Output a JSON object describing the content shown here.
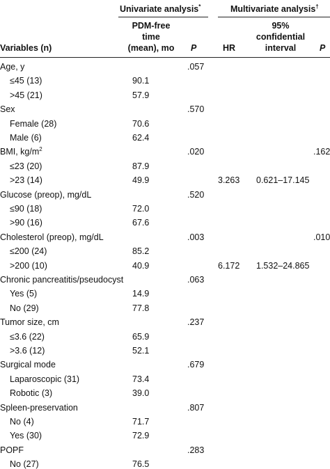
{
  "header": {
    "univariate": "Univariate analysis",
    "univariate_mark": "*",
    "multivariate": "Multivariate analysis",
    "multivariate_mark": "†",
    "pdm_line1": "PDM-free",
    "pdm_line2": "time",
    "pdm_line3": "(mean), mo",
    "p": "P",
    "hr": "HR",
    "ci_line1": "95%",
    "ci_line2": "confidential",
    "ci_line3": "interval",
    "p2": "P",
    "variables": "Variables (n)"
  },
  "rows": [
    {
      "label": "Age, y",
      "indent": false,
      "mean": "",
      "p": ".057",
      "hr": "",
      "ci": "",
      "p2": ""
    },
    {
      "label": "≤45 (13)",
      "indent": true,
      "mean": "90.1",
      "p": "",
      "hr": "",
      "ci": "",
      "p2": ""
    },
    {
      "label": ">45 (21)",
      "indent": true,
      "mean": "57.9",
      "p": "",
      "hr": "",
      "ci": "",
      "p2": ""
    },
    {
      "label": "Sex",
      "indent": false,
      "mean": "",
      "p": ".570",
      "hr": "",
      "ci": "",
      "p2": ""
    },
    {
      "label": "Female (28)",
      "indent": true,
      "mean": "70.6",
      "p": "",
      "hr": "",
      "ci": "",
      "p2": ""
    },
    {
      "label": "Male (6)",
      "indent": true,
      "mean": "62.4",
      "p": "",
      "hr": "",
      "ci": "",
      "p2": ""
    },
    {
      "label": "BMI, kg/m",
      "sup": "2",
      "indent": false,
      "mean": "",
      "p": ".020",
      "hr": "",
      "ci": "",
      "p2": ".162"
    },
    {
      "label": "≤23 (20)",
      "indent": true,
      "mean": "87.9",
      "p": "",
      "hr": "",
      "ci": "",
      "p2": ""
    },
    {
      "label": ">23 (14)",
      "indent": true,
      "mean": "49.9",
      "p": "",
      "hr": "3.263",
      "ci": "0.621–17.145",
      "p2": ""
    },
    {
      "label": "Glucose (preop), mg/dL",
      "indent": false,
      "mean": "",
      "p": ".520",
      "hr": "",
      "ci": "",
      "p2": ""
    },
    {
      "label": "≤90 (18)",
      "indent": true,
      "mean": "72.0",
      "p": "",
      "hr": "",
      "ci": "",
      "p2": ""
    },
    {
      "label": ">90 (16)",
      "indent": true,
      "mean": "67.6",
      "p": "",
      "hr": "",
      "ci": "",
      "p2": ""
    },
    {
      "label": "Cholesterol (preop), mg/dL",
      "indent": false,
      "mean": "",
      "p": ".003",
      "hr": "",
      "ci": "",
      "p2": ".010"
    },
    {
      "label": "≤200 (24)",
      "indent": true,
      "mean": "85.2",
      "p": "",
      "hr": "",
      "ci": "",
      "p2": ""
    },
    {
      "label": ">200 (10)",
      "indent": true,
      "mean": "40.9",
      "p": "",
      "hr": "6.172",
      "ci": "1.532–24.865",
      "p2": ""
    },
    {
      "label": "Chronic pancreatitis/pseudocyst",
      "indent": false,
      "mean": "",
      "p": ".063",
      "hr": "",
      "ci": "",
      "p2": ""
    },
    {
      "label": "Yes (5)",
      "indent": true,
      "mean": "14.9",
      "p": "",
      "hr": "",
      "ci": "",
      "p2": ""
    },
    {
      "label": "No (29)",
      "indent": true,
      "mean": "77.8",
      "p": "",
      "hr": "",
      "ci": "",
      "p2": ""
    },
    {
      "label": "Tumor size, cm",
      "indent": false,
      "mean": "",
      "p": ".237",
      "hr": "",
      "ci": "",
      "p2": ""
    },
    {
      "label": "≤3.6 (22)",
      "indent": true,
      "mean": "65.9",
      "p": "",
      "hr": "",
      "ci": "",
      "p2": ""
    },
    {
      "label": ">3.6 (12)",
      "indent": true,
      "mean": "52.1",
      "p": "",
      "hr": "",
      "ci": "",
      "p2": ""
    },
    {
      "label": "Surgical mode",
      "indent": false,
      "mean": "",
      "p": ".679",
      "hr": "",
      "ci": "",
      "p2": ""
    },
    {
      "label": "Laparoscopic (31)",
      "indent": true,
      "mean": "73.4",
      "p": "",
      "hr": "",
      "ci": "",
      "p2": ""
    },
    {
      "label": "Robotic (3)",
      "indent": true,
      "mean": "39.0",
      "p": "",
      "hr": "",
      "ci": "",
      "p2": ""
    },
    {
      "label": "Spleen-preservation",
      "indent": false,
      "mean": "",
      "p": ".807",
      "hr": "",
      "ci": "",
      "p2": ""
    },
    {
      "label": "No (4)",
      "indent": true,
      "mean": "71.7",
      "p": "",
      "hr": "",
      "ci": "",
      "p2": ""
    },
    {
      "label": "Yes (30)",
      "indent": true,
      "mean": "72.9",
      "p": "",
      "hr": "",
      "ci": "",
      "p2": ""
    },
    {
      "label": "POPF",
      "indent": false,
      "mean": "",
      "p": ".283",
      "hr": "",
      "ci": "",
      "p2": ""
    },
    {
      "label": "No (27)",
      "indent": true,
      "mean": "76.5",
      "p": "",
      "hr": "",
      "ci": "",
      "p2": ""
    }
  ]
}
